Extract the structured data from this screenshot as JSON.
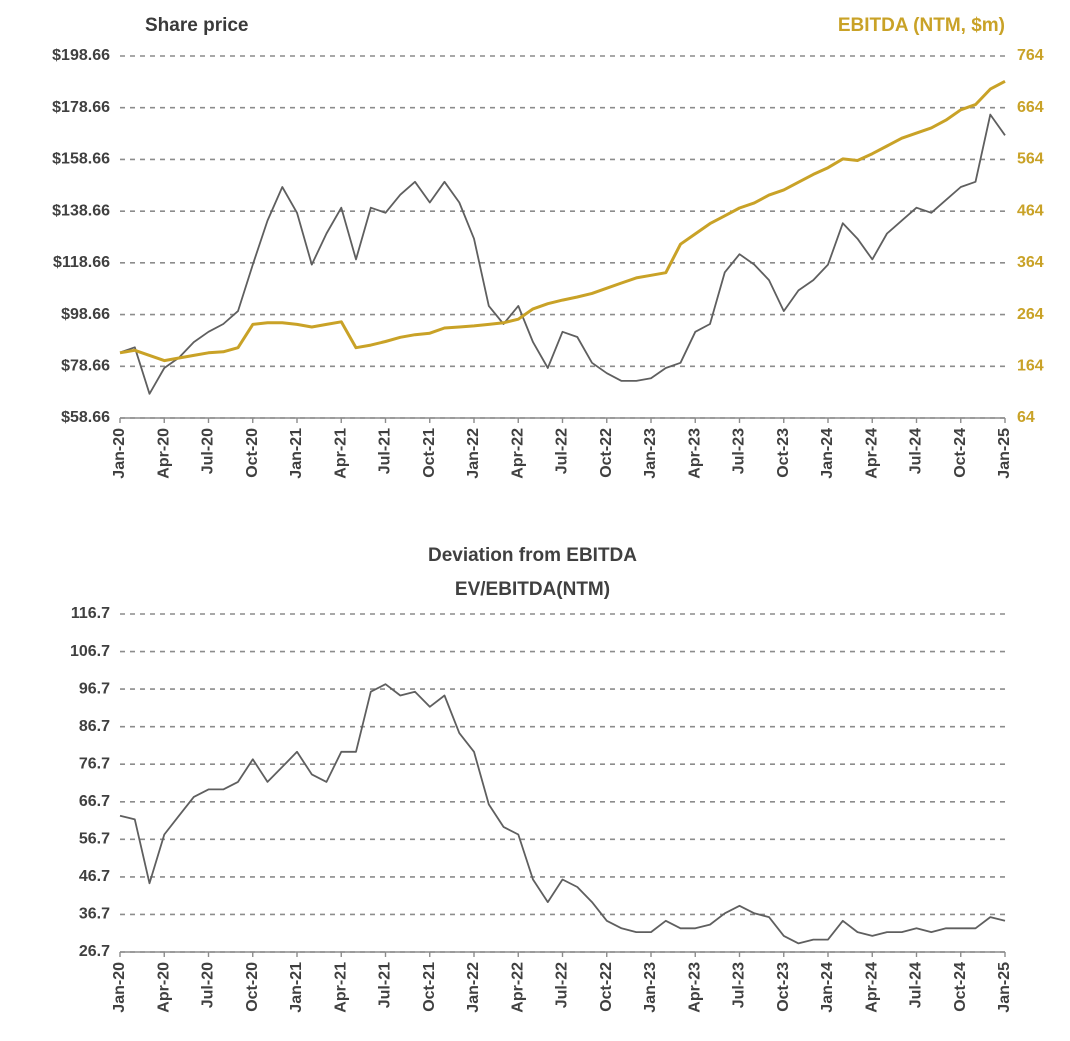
{
  "chart_data": [
    {
      "type": "line",
      "x": [
        "2020-01",
        "2020-02",
        "2020-03",
        "2020-04",
        "2020-05",
        "2020-06",
        "2020-07",
        "2020-08",
        "2020-09",
        "2020-10",
        "2020-11",
        "2020-12",
        "2021-01",
        "2021-02",
        "2021-03",
        "2021-04",
        "2021-05",
        "2021-06",
        "2021-07",
        "2021-08",
        "2021-09",
        "2021-10",
        "2021-11",
        "2021-12",
        "2022-01",
        "2022-02",
        "2022-03",
        "2022-04",
        "2022-05",
        "2022-06",
        "2022-07",
        "2022-08",
        "2022-09",
        "2022-10",
        "2022-11",
        "2022-12",
        "2023-01",
        "2023-02",
        "2023-03",
        "2023-04",
        "2023-05",
        "2023-06",
        "2023-07",
        "2023-08",
        "2023-09",
        "2023-10",
        "2023-11",
        "2023-12",
        "2024-01",
        "2024-02",
        "2024-03",
        "2024-04",
        "2024-05",
        "2024-06",
        "2024-07",
        "2024-08",
        "2024-09",
        "2024-10",
        "2024-11",
        "2024-12",
        "2025-01"
      ],
      "xticks": [
        {
          "value": "2020-01",
          "label": "Jan-20"
        },
        {
          "value": "2020-04",
          "label": "Apr-20"
        },
        {
          "value": "2020-07",
          "label": "Jul-20"
        },
        {
          "value": "2020-10",
          "label": "Oct-20"
        },
        {
          "value": "2021-01",
          "label": "Jan-21"
        },
        {
          "value": "2021-04",
          "label": "Apr-21"
        },
        {
          "value": "2021-07",
          "label": "Jul-21"
        },
        {
          "value": "2021-10",
          "label": "Oct-21"
        },
        {
          "value": "2022-01",
          "label": "Jan-22"
        },
        {
          "value": "2022-04",
          "label": "Apr-22"
        },
        {
          "value": "2022-07",
          "label": "Jul-22"
        },
        {
          "value": "2022-10",
          "label": "Oct-22"
        },
        {
          "value": "2023-01",
          "label": "Jan-23"
        },
        {
          "value": "2023-04",
          "label": "Apr-23"
        },
        {
          "value": "2023-07",
          "label": "Jul-23"
        },
        {
          "value": "2023-10",
          "label": "Oct-23"
        },
        {
          "value": "2024-01",
          "label": "Jan-24"
        },
        {
          "value": "2024-04",
          "label": "Apr-24"
        },
        {
          "value": "2024-07",
          "label": "Jul-24"
        },
        {
          "value": "2024-10",
          "label": "Oct-24"
        },
        {
          "value": "2025-01",
          "label": "Jan-25"
        }
      ],
      "ylim": [
        58.66,
        198.66
      ],
      "yticks": [
        {
          "value": 58.66,
          "label": "$58.66"
        },
        {
          "value": 78.66,
          "label": "$78.66"
        },
        {
          "value": 98.66,
          "label": "$98.66"
        },
        {
          "value": 118.66,
          "label": "$118.66"
        },
        {
          "value": 138.66,
          "label": "$138.66"
        },
        {
          "value": 158.66,
          "label": "$158.66"
        },
        {
          "value": 178.66,
          "label": "$178.66"
        },
        {
          "value": 198.66,
          "label": "$198.66"
        }
      ],
      "y2lim": [
        64,
        764
      ],
      "y2ticks": [
        64,
        164,
        264,
        364,
        464,
        564,
        664,
        764
      ],
      "grid": true,
      "series": [
        {
          "name": "Share price",
          "color": "#5f5f5f",
          "values": [
            84,
            86,
            68,
            78,
            82,
            88,
            92,
            95,
            100,
            118,
            135,
            148,
            138,
            118,
            130,
            140,
            120,
            140,
            138,
            145,
            150,
            142,
            150,
            142,
            128,
            102,
            95,
            102,
            88,
            78,
            92,
            90,
            80,
            76,
            73,
            73,
            74,
            78,
            80,
            92,
            95,
            115,
            122,
            118,
            112,
            100,
            108,
            112,
            118,
            134,
            128,
            120,
            130,
            135,
            140,
            138,
            143,
            148,
            150,
            176,
            168
          ]
        },
        {
          "name": "EBITDA (NTM, $m)",
          "color": "#c9a227",
          "axis": "y2",
          "values": [
            190,
            195,
            185,
            175,
            180,
            185,
            190,
            192,
            200,
            245,
            248,
            248,
            245,
            240,
            245,
            250,
            200,
            205,
            212,
            220,
            225,
            228,
            238,
            240,
            242,
            245,
            248,
            255,
            275,
            285,
            292,
            298,
            305,
            315,
            325,
            335,
            340,
            345,
            400,
            420,
            440,
            455,
            470,
            480,
            495,
            505,
            520,
            535,
            548,
            565,
            562,
            575,
            590,
            605,
            615,
            625,
            640,
            660,
            670,
            700,
            715
          ]
        }
      ]
    },
    {
      "type": "line",
      "title": "Deviation from EBITDA",
      "subtitle": "EV/EBITDA(NTM)",
      "x": [
        "2020-01",
        "2020-02",
        "2020-03",
        "2020-04",
        "2020-05",
        "2020-06",
        "2020-07",
        "2020-08",
        "2020-09",
        "2020-10",
        "2020-11",
        "2020-12",
        "2021-01",
        "2021-02",
        "2021-03",
        "2021-04",
        "2021-05",
        "2021-06",
        "2021-07",
        "2021-08",
        "2021-09",
        "2021-10",
        "2021-11",
        "2021-12",
        "2022-01",
        "2022-02",
        "2022-03",
        "2022-04",
        "2022-05",
        "2022-06",
        "2022-07",
        "2022-08",
        "2022-09",
        "2022-10",
        "2022-11",
        "2022-12",
        "2023-01",
        "2023-02",
        "2023-03",
        "2023-04",
        "2023-05",
        "2023-06",
        "2023-07",
        "2023-08",
        "2023-09",
        "2023-10",
        "2023-11",
        "2023-12",
        "2024-01",
        "2024-02",
        "2024-03",
        "2024-04",
        "2024-05",
        "2024-06",
        "2024-07",
        "2024-08",
        "2024-09",
        "2024-10",
        "2024-11",
        "2024-12",
        "2025-01"
      ],
      "xticks": [
        {
          "value": "2020-01",
          "label": "Jan-20"
        },
        {
          "value": "2020-04",
          "label": "Apr-20"
        },
        {
          "value": "2020-07",
          "label": "Jul-20"
        },
        {
          "value": "2020-10",
          "label": "Oct-20"
        },
        {
          "value": "2021-01",
          "label": "Jan-21"
        },
        {
          "value": "2021-04",
          "label": "Apr-21"
        },
        {
          "value": "2021-07",
          "label": "Jul-21"
        },
        {
          "value": "2021-10",
          "label": "Oct-21"
        },
        {
          "value": "2022-01",
          "label": "Jan-22"
        },
        {
          "value": "2022-04",
          "label": "Apr-22"
        },
        {
          "value": "2022-07",
          "label": "Jul-22"
        },
        {
          "value": "2022-10",
          "label": "Oct-22"
        },
        {
          "value": "2023-01",
          "label": "Jan-23"
        },
        {
          "value": "2023-04",
          "label": "Apr-23"
        },
        {
          "value": "2023-07",
          "label": "Jul-23"
        },
        {
          "value": "2023-10",
          "label": "Oct-23"
        },
        {
          "value": "2024-01",
          "label": "Jan-24"
        },
        {
          "value": "2024-04",
          "label": "Apr-24"
        },
        {
          "value": "2024-07",
          "label": "Jul-24"
        },
        {
          "value": "2024-10",
          "label": "Oct-24"
        },
        {
          "value": "2025-01",
          "label": "Jan-25"
        }
      ],
      "ylim": [
        26.7,
        116.7
      ],
      "yticks": [
        26.7,
        36.7,
        46.7,
        56.7,
        66.7,
        76.7,
        86.7,
        96.7,
        106.7,
        116.7
      ],
      "grid": true,
      "series": [
        {
          "name": null,
          "color": "#5f5f5f",
          "values": [
            63,
            62,
            45,
            58,
            63,
            68,
            70,
            70,
            72,
            78,
            72,
            76,
            80,
            74,
            72,
            80,
            80,
            96,
            98,
            95,
            96,
            92,
            95,
            85,
            80,
            66,
            60,
            58,
            46,
            40,
            46,
            44,
            40,
            35,
            33,
            32,
            32,
            35,
            33,
            33,
            34,
            37,
            39,
            37,
            36,
            31,
            29,
            30,
            30,
            35,
            32,
            31,
            32,
            32,
            33,
            32,
            33,
            33,
            33,
            36,
            35
          ]
        }
      ]
    }
  ]
}
